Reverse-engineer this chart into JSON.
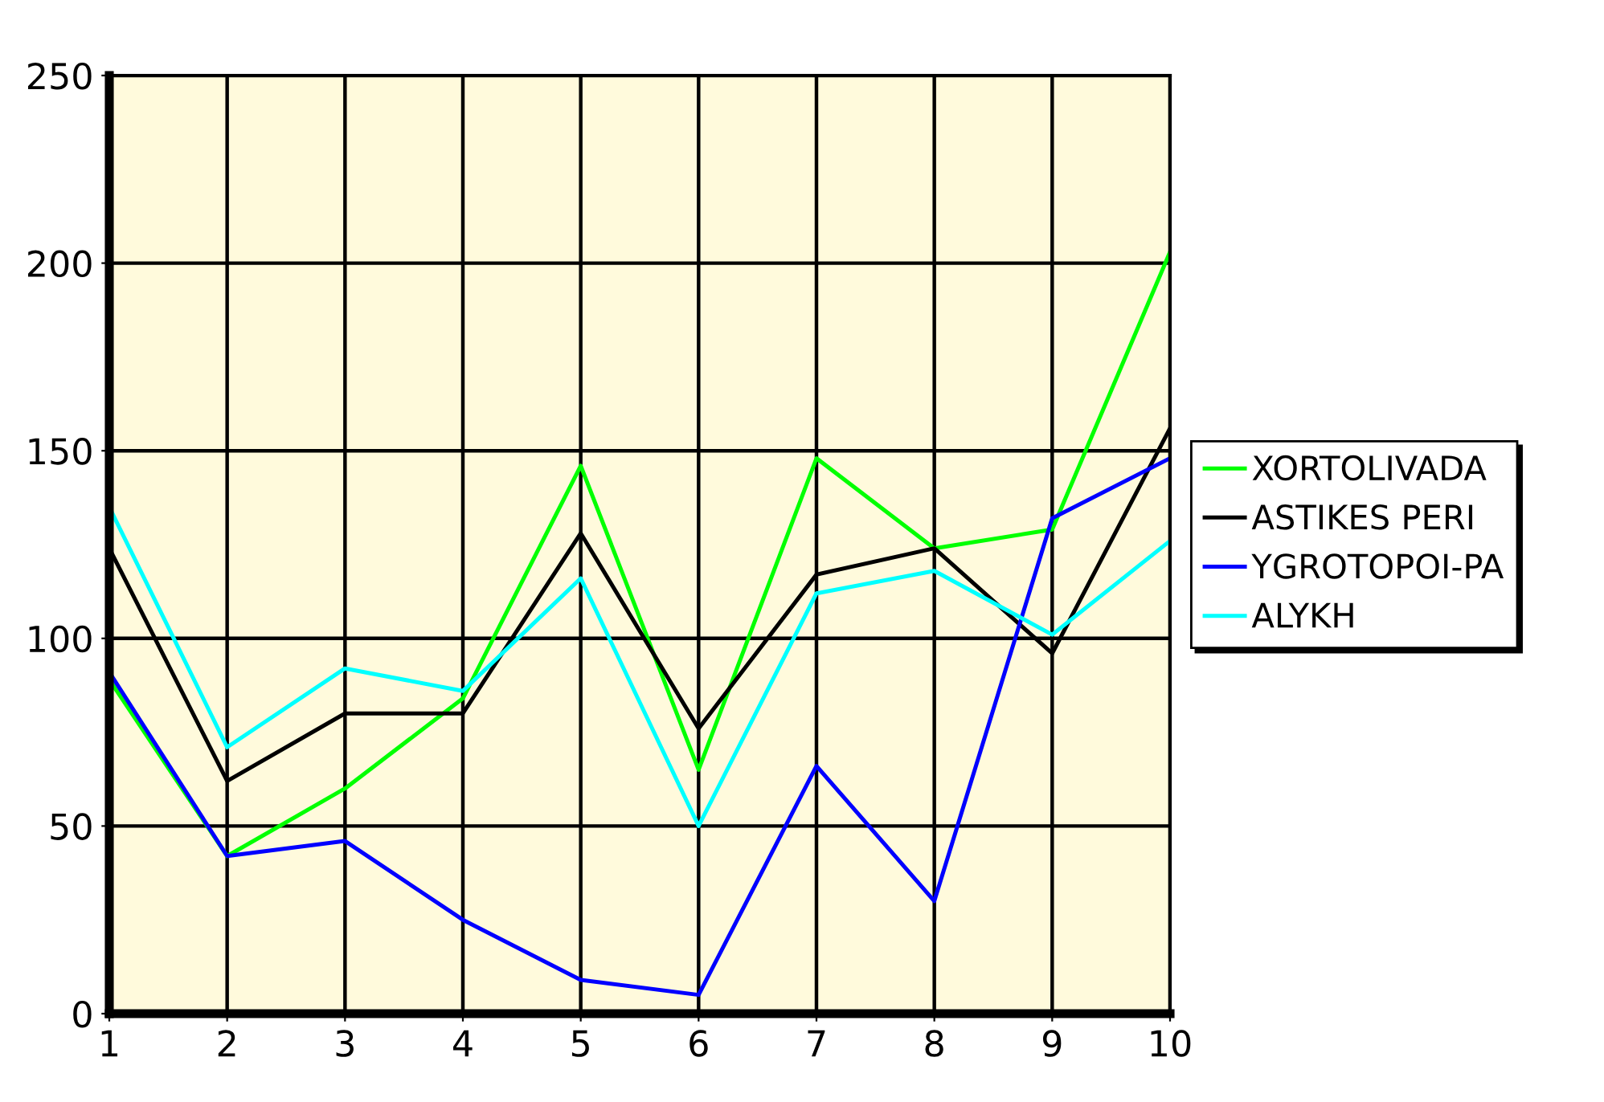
{
  "chart_data": {
    "type": "line",
    "x": [
      1,
      2,
      3,
      4,
      5,
      6,
      7,
      8,
      9,
      10
    ],
    "series": [
      {
        "name": "XORTOLIVADA",
        "color": "#00ff00",
        "values": [
          89,
          42,
          60,
          84,
          146,
          65,
          148,
          124,
          129,
          203
        ]
      },
      {
        "name": "ASTIKES PERI",
        "color": "#000000",
        "values": [
          124,
          62,
          80,
          80,
          128,
          76,
          117,
          124,
          96,
          156
        ]
      },
      {
        "name": "YGROTOPOI-PA",
        "color": "#0000ff",
        "values": [
          91,
          42,
          46,
          25,
          9,
          5,
          66,
          30,
          132,
          148
        ]
      },
      {
        "name": "ALYKH",
        "color": "#00ffff",
        "values": [
          135,
          71,
          92,
          86,
          116,
          50,
          112,
          118,
          101,
          126
        ]
      }
    ],
    "xlim": [
      1,
      10
    ],
    "xticks": [
      1,
      2,
      3,
      4,
      5,
      6,
      7,
      8,
      9,
      10
    ],
    "ylim": [
      0,
      250
    ],
    "yticks": [
      0,
      50,
      100,
      150,
      200,
      250
    ],
    "grid": true,
    "legend": "right",
    "marker": "none",
    "line_style": "solid"
  }
}
